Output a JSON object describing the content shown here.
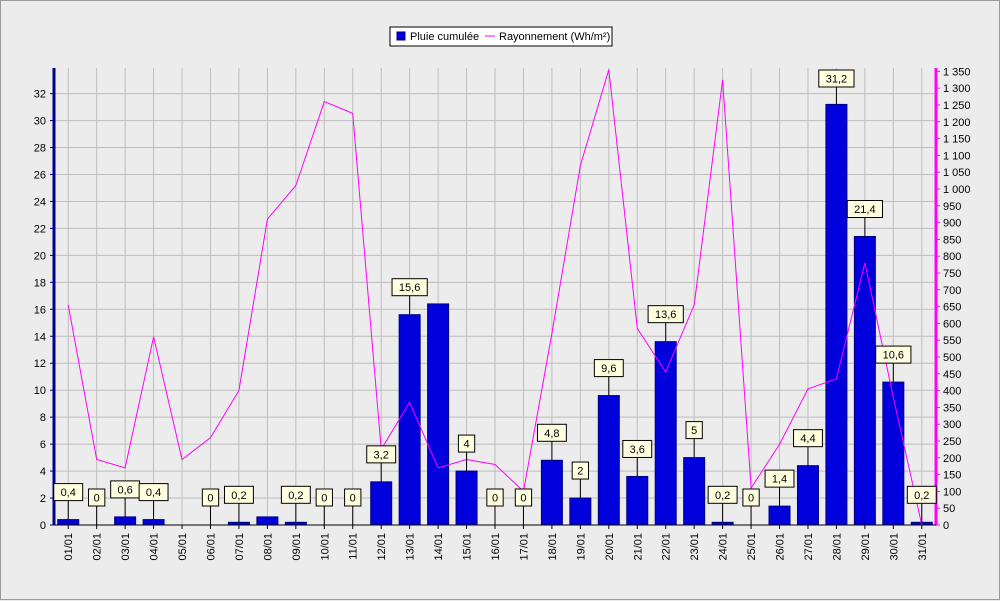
{
  "chart_data": {
    "type": "bar",
    "categories": [
      "01/01",
      "02/01",
      "03/01",
      "04/01",
      "05/01",
      "06/01",
      "07/01",
      "08/01",
      "09/01",
      "10/01",
      "11/01",
      "12/01",
      "13/01",
      "14/01",
      "15/01",
      "16/01",
      "17/01",
      "18/01",
      "19/01",
      "20/01",
      "21/01",
      "22/01",
      "23/01",
      "24/01",
      "25/01",
      "26/01",
      "27/01",
      "28/01",
      "29/01",
      "30/01",
      "31/01"
    ],
    "series": [
      {
        "name": "Pluie cumulée",
        "type": "bar",
        "axis": "left",
        "color": "#0000dd",
        "values": [
          0.4,
          0,
          0.6,
          0.4,
          0,
          0,
          0.2,
          0.6,
          0.2,
          0,
          0,
          3.2,
          15.6,
          16.4,
          4,
          0,
          0,
          4.8,
          2,
          9.6,
          3.6,
          13.6,
          5,
          0.2,
          0,
          1.4,
          4.4,
          31.2,
          21.4,
          10.6,
          0.2
        ],
        "data_labels": [
          "0,4",
          "0",
          "0,6",
          "0,4",
          "",
          "0",
          "0,2",
          "",
          "0,2",
          "0",
          "0",
          "3,2",
          "15,6",
          "",
          "4",
          "0",
          "0",
          "4,8",
          "2",
          "9,6",
          "3,6",
          "13,6",
          "5",
          "0,2",
          "0",
          "1,4",
          "4,4",
          "31,2",
          "21,4",
          "10,6",
          "0,2"
        ]
      },
      {
        "name": "Rayonnement (Wh/m²)",
        "type": "line",
        "axis": "right",
        "color": "#ff00ff",
        "values": [
          655,
          195,
          170,
          560,
          195,
          260,
          400,
          910,
          1010,
          1260,
          1225,
          225,
          365,
          170,
          195,
          180,
          100,
          570,
          1070,
          1355,
          585,
          455,
          655,
          1325,
          110,
          240,
          405,
          435,
          780,
          380,
          0
        ]
      }
    ],
    "y_left": {
      "range": [
        0,
        33.9
      ],
      "ticks": [
        0,
        2,
        4,
        6,
        8,
        10,
        12,
        14,
        16,
        18,
        20,
        22,
        24,
        26,
        28,
        30,
        32
      ],
      "tick_labels": [
        "0",
        "2",
        "4",
        "6",
        "8",
        "10",
        "12",
        "14",
        "16",
        "18",
        "20",
        "22",
        "24",
        "26",
        "28",
        "30",
        "32"
      ]
    },
    "y_right": {
      "range": [
        0,
        1360
      ],
      "ticks": [
        0,
        50,
        100,
        150,
        200,
        250,
        300,
        350,
        400,
        450,
        500,
        550,
        600,
        650,
        700,
        750,
        800,
        850,
        900,
        950,
        1000,
        1050,
        1100,
        1150,
        1200,
        1250,
        1300,
        1350
      ],
      "tick_labels": [
        "0",
        "50",
        "100",
        "150",
        "200",
        "250",
        "300",
        "350",
        "400",
        "450",
        "500",
        "550",
        "600",
        "650",
        "700",
        "750",
        "800",
        "850",
        "900",
        "950",
        "1 000",
        "1 050",
        "1 100",
        "1 150",
        "1 200",
        "1 250",
        "1 300",
        "1 350"
      ]
    },
    "grid": true,
    "legend_position": "top-center",
    "colors": {
      "background": "#ececec",
      "plot_background": "#ececec",
      "grid": "#bdbdbd",
      "left_axis": "#00008b",
      "right_axis": "#ff00ff",
      "bar_fill": "#0000dd",
      "bar_stroke": "#000080",
      "label_box_fill": "#ffffe0",
      "label_box_stroke": "#000000"
    }
  }
}
